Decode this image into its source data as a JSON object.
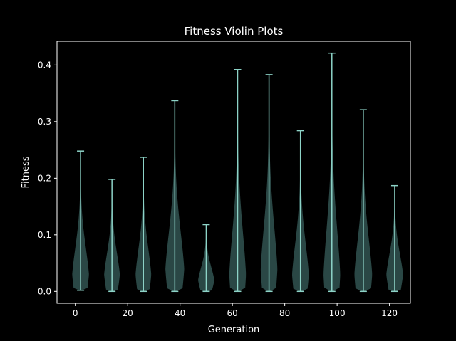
{
  "chart_data": {
    "type": "violin",
    "title": "Fitness Violin Plots",
    "xlabel": "Generation",
    "ylabel": "Fitness",
    "xlim": [
      -7,
      128
    ],
    "ylim": [
      -0.021,
      0.442
    ],
    "xticks": [
      0,
      20,
      40,
      60,
      80,
      100,
      120
    ],
    "yticks": [
      0.0,
      0.1,
      0.2,
      0.3,
      0.4
    ],
    "ytick_labels": [
      "0.0",
      "0.1",
      "0.2",
      "0.3",
      "0.4"
    ],
    "grid": false,
    "colors": {
      "background": "#000000",
      "frame": "#ffffff",
      "violin_fill": "#2f4f4c",
      "line": "#8dd3c7"
    },
    "violins": [
      {
        "x": 2,
        "min": 0.002,
        "max": 0.248,
        "halfwidth": 3.2,
        "peak": 0.03
      },
      {
        "x": 14,
        "min": 0.0,
        "max": 0.198,
        "halfwidth": 3.0,
        "peak": 0.03
      },
      {
        "x": 26,
        "min": 0.0,
        "max": 0.237,
        "halfwidth": 3.0,
        "peak": 0.03
      },
      {
        "x": 38,
        "min": 0.0,
        "max": 0.337,
        "halfwidth": 3.6,
        "peak": 0.04
      },
      {
        "x": 50,
        "min": 0.0,
        "max": 0.118,
        "halfwidth": 3.1,
        "peak": 0.02
      },
      {
        "x": 62,
        "min": 0.0,
        "max": 0.392,
        "halfwidth": 3.2,
        "peak": 0.03
      },
      {
        "x": 74,
        "min": 0.0,
        "max": 0.383,
        "halfwidth": 3.2,
        "peak": 0.04
      },
      {
        "x": 86,
        "min": 0.0,
        "max": 0.284,
        "halfwidth": 3.2,
        "peak": 0.03
      },
      {
        "x": 98,
        "min": 0.0,
        "max": 0.421,
        "halfwidth": 3.2,
        "peak": 0.03
      },
      {
        "x": 110,
        "min": 0.0,
        "max": 0.321,
        "halfwidth": 3.4,
        "peak": 0.03
      },
      {
        "x": 122,
        "min": 0.0,
        "max": 0.187,
        "halfwidth": 3.2,
        "peak": 0.03
      }
    ]
  }
}
